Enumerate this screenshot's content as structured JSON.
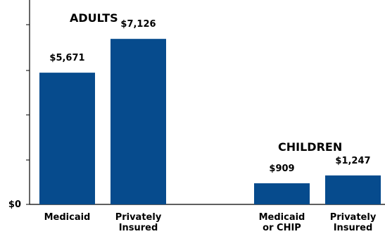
{
  "chart_data": {
    "type": "bar",
    "ylim": [
      0,
      8800
    ],
    "y_tick_labels": [
      "$0"
    ],
    "grid": false,
    "bar_color": "#064b8d",
    "groups": [
      {
        "title": "ADULTS",
        "bars": [
          {
            "category": [
              "Medicaid"
            ],
            "value": 5671,
            "label": "$5,671"
          },
          {
            "category": [
              "Privately",
              "Insured"
            ],
            "value": 7126,
            "label": "$7,126"
          }
        ]
      },
      {
        "title": "CHILDREN",
        "bars": [
          {
            "category": [
              "Medicaid",
              "or CHIP"
            ],
            "value": 909,
            "label": "$909"
          },
          {
            "category": [
              "Privately",
              "Insured"
            ],
            "value": 1247,
            "label": "$1,247"
          }
        ]
      }
    ]
  }
}
